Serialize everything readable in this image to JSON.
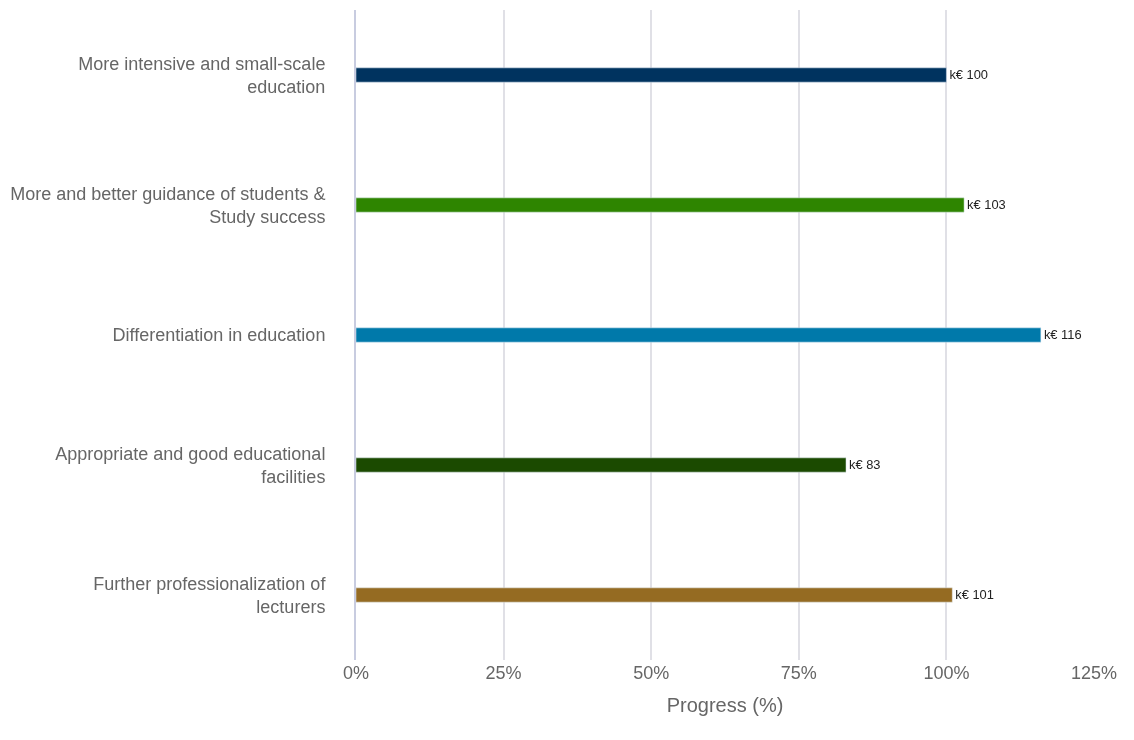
{
  "chart_data": {
    "type": "bar",
    "orientation": "horizontal",
    "xlabel": "Progress (%)",
    "categories": [
      "More intensive and small-scale education",
      "More and better guidance of students & Study success",
      "Differentiation in education",
      "Appropriate and good educational facilities",
      "Further professionalization of lecturers"
    ],
    "values": [
      100,
      103,
      116,
      83,
      101
    ],
    "colors": [
      "#00335f",
      "#2e8500",
      "#0079aa",
      "#1b4a00",
      "#956b22"
    ],
    "value_labels": [
      "k€ 100",
      "k€ 103",
      "k€ 116",
      "k€ 83",
      "k€ 101"
    ],
    "xlim": [
      0,
      125
    ],
    "xticks": [
      {
        "value": 0,
        "label": "0%"
      },
      {
        "value": 25,
        "label": "25%"
      },
      {
        "value": 50,
        "label": "50%"
      },
      {
        "value": 75,
        "label": "75%"
      },
      {
        "value": 100,
        "label": "100%"
      },
      {
        "value": 125,
        "label": "125%"
      }
    ],
    "grid": "x",
    "legend": false
  }
}
